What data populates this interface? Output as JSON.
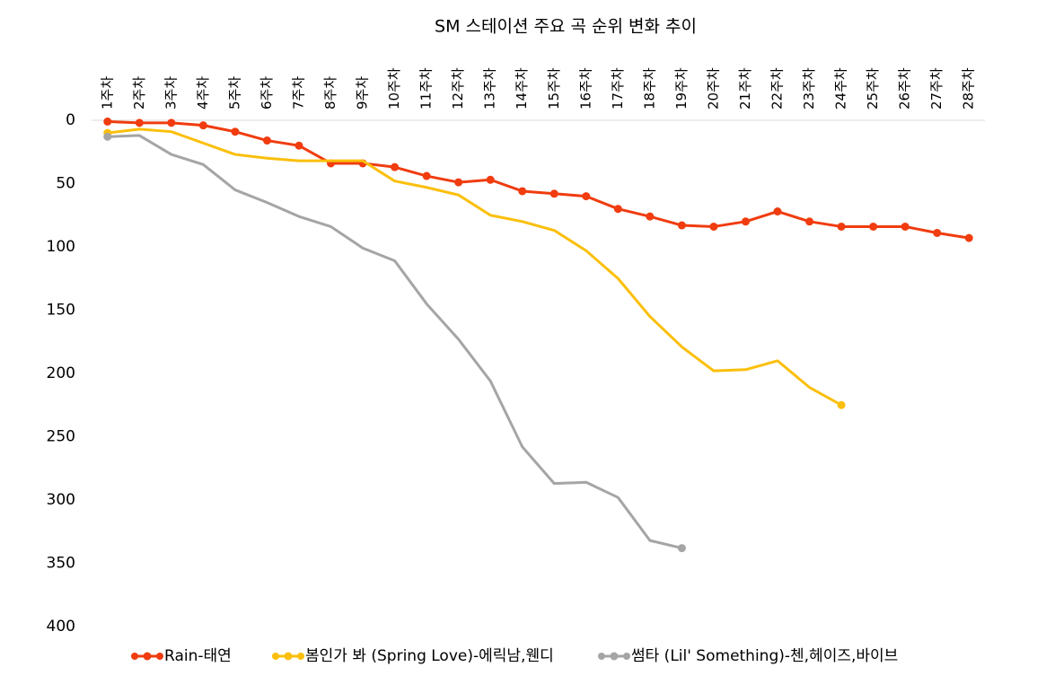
{
  "chart_data": {
    "type": "line",
    "title": "SM 스테이션 주요 곡 순위 변화 추이",
    "categories": [
      "1주차",
      "2주차",
      "3주차",
      "4주차",
      "5주차",
      "6주차",
      "7주차",
      "8주차",
      "9주차",
      "10주차",
      "11주차",
      "12주차",
      "13주차",
      "14주차",
      "15주차",
      "16주차",
      "17주차",
      "18주차",
      "19주차",
      "20주차",
      "21주차",
      "22주차",
      "23주차",
      "24주차",
      "25주차",
      "26주차",
      "27주차",
      "28주차"
    ],
    "series": [
      {
        "name": "Rain-태연",
        "color": "#f03c0f",
        "marker": "all",
        "values": [
          1,
          2,
          2,
          4,
          9,
          16,
          20,
          34,
          34,
          37,
          44,
          49,
          47,
          56,
          58,
          60,
          70,
          76,
          83,
          84,
          80,
          72,
          80,
          84,
          84,
          84,
          89,
          93
        ]
      },
      {
        "name": "봄인가 봐 (Spring Love)-에릭남,웬디",
        "color": "#fbbf0b",
        "marker": "ends",
        "values": [
          10,
          7,
          9,
          18,
          27,
          30,
          32,
          32,
          32,
          48,
          53,
          59,
          75,
          80,
          87,
          103,
          125,
          155,
          179,
          198,
          197,
          190,
          211,
          225,
          null,
          null,
          null,
          null
        ]
      },
      {
        "name": "썸타 (Lil' Something)-첸,헤이즈,바이브",
        "color": "#a5a5a5",
        "marker": "ends",
        "values": [
          13,
          12,
          27,
          35,
          55,
          65,
          76,
          84,
          101,
          111,
          145,
          173,
          206,
          258,
          287,
          286,
          298,
          332,
          338,
          null,
          null,
          null,
          null,
          null,
          null,
          null,
          null,
          null
        ]
      }
    ],
    "ylim": [
      0,
      400
    ],
    "yticks": [
      0,
      50,
      100,
      150,
      200,
      250,
      300,
      350,
      400
    ],
    "y_reversed": true,
    "grid": false,
    "legend": "bottom"
  }
}
